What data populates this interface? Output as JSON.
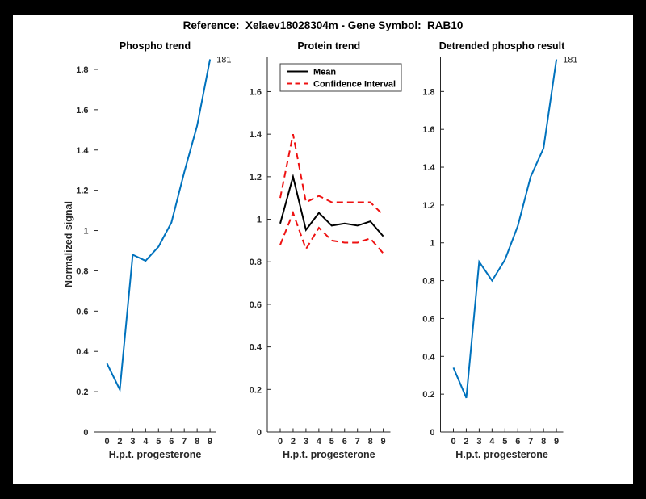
{
  "header": {
    "title": "Reference:  Xelaev18028304m - Gene Symbol:  RAB10"
  },
  "colors": {
    "page_bg": "#000000",
    "figure_bg": "#FFFFFF",
    "axis": "#262626",
    "signal_blue": "#0072BD",
    "mean_black": "#000000",
    "ci_red": "#EE1111"
  },
  "chart_data": [
    {
      "type": "line",
      "title": "Phospho trend",
      "xlabel": "H.p.t. progesterone",
      "ylabel": "Normalized signal",
      "x_tick_labels": [
        "0",
        "2",
        "3",
        "4",
        "5",
        "6",
        "7",
        "8",
        "9"
      ],
      "y_tick_values": [
        0,
        0.2,
        0.4,
        0.6,
        0.8,
        1,
        1.2,
        1.4,
        1.6,
        1.8
      ],
      "y_tick_labels": [
        "0",
        "0.2",
        "0.4",
        "0.6",
        "0.8",
        "1",
        "1.2",
        "1.4",
        "1.6",
        "1.8"
      ],
      "ylim": [
        0,
        1.864
      ],
      "grid": false,
      "legend": null,
      "annotation": {
        "text": "181"
      },
      "series": [
        {
          "name": "phospho-signal",
          "color": "#0072BD",
          "dash": false,
          "values": [
            0.34,
            0.21,
            0.88,
            0.85,
            0.92,
            1.04,
            1.29,
            1.52,
            1.85
          ]
        }
      ]
    },
    {
      "type": "line",
      "title": "Protein trend",
      "xlabel": "H.p.t. progesterone",
      "ylabel": "",
      "x_tick_labels": [
        "0",
        "2",
        "3",
        "4",
        "5",
        "6",
        "7",
        "8",
        "9"
      ],
      "y_tick_values": [
        0,
        0.2,
        0.4,
        0.6,
        0.8,
        1,
        1.2,
        1.4,
        1.6
      ],
      "y_tick_labels": [
        "0",
        "0.2",
        "0.4",
        "0.6",
        "0.8",
        "1",
        "1.2",
        "1.4",
        "1.6"
      ],
      "ylim": [
        0,
        1.765
      ],
      "grid": false,
      "legend": {
        "position": "northwest",
        "entries": [
          {
            "label": "Mean",
            "color": "#000000",
            "dash": false
          },
          {
            "label": "Confidence Interval",
            "color": "#EE1111",
            "dash": true
          }
        ]
      },
      "annotation": null,
      "series": [
        {
          "name": "ci-upper",
          "color": "#EE1111",
          "dash": true,
          "values": [
            1.1,
            1.4,
            1.08,
            1.11,
            1.08,
            1.08,
            1.08,
            1.08,
            1.02
          ]
        },
        {
          "name": "ci-lower",
          "color": "#EE1111",
          "dash": true,
          "values": [
            0.88,
            1.03,
            0.86,
            0.96,
            0.9,
            0.89,
            0.89,
            0.91,
            0.84
          ]
        },
        {
          "name": "mean",
          "color": "#000000",
          "dash": false,
          "values": [
            0.98,
            1.2,
            0.95,
            1.03,
            0.97,
            0.98,
            0.97,
            0.99,
            0.92
          ]
        }
      ]
    },
    {
      "type": "line",
      "title": "Detrended phospho result",
      "xlabel": "H.p.t. progesterone",
      "ylabel": "",
      "x_tick_labels": [
        "0",
        "2",
        "3",
        "4",
        "5",
        "6",
        "7",
        "8",
        "9"
      ],
      "y_tick_values": [
        0,
        0.2,
        0.4,
        0.6,
        0.8,
        1,
        1.2,
        1.4,
        1.6,
        1.8
      ],
      "y_tick_labels": [
        "0",
        "0.2",
        "0.4",
        "0.6",
        "0.8",
        "1",
        "1.2",
        "1.4",
        "1.6",
        "1.8"
      ],
      "ylim": [
        0,
        1.985
      ],
      "grid": false,
      "legend": null,
      "annotation": {
        "text": "181"
      },
      "series": [
        {
          "name": "detrended-phospho-signal",
          "color": "#0072BD",
          "dash": false,
          "values": [
            0.34,
            0.18,
            0.9,
            0.8,
            0.91,
            1.09,
            1.35,
            1.5,
            1.97
          ]
        }
      ]
    }
  ]
}
